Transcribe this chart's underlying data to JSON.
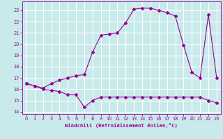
{
  "xlabel": "Windchill (Refroidissement éolien,°C)",
  "xlim": [
    -0.5,
    23.5
  ],
  "ylim": [
    13.8,
    23.8
  ],
  "yticks": [
    14,
    15,
    16,
    17,
    18,
    19,
    20,
    21,
    22,
    23
  ],
  "xticks": [
    0,
    1,
    2,
    3,
    4,
    5,
    6,
    7,
    8,
    9,
    10,
    11,
    12,
    13,
    14,
    15,
    16,
    17,
    18,
    19,
    20,
    21,
    22,
    23
  ],
  "bg_color": "#c8eaea",
  "grid_color": "#ffffff",
  "line_color": "#990099",
  "line1_x": [
    0,
    1,
    2,
    3,
    4,
    5,
    6,
    7,
    8,
    9,
    10,
    11,
    12,
    13,
    14,
    15,
    16,
    17,
    18,
    19,
    20,
    21,
    22,
    23
  ],
  "line1_y": [
    16.5,
    16.3,
    16.0,
    15.9,
    15.8,
    15.5,
    15.5,
    14.4,
    15.0,
    15.3,
    15.3,
    15.3,
    15.3,
    15.3,
    15.3,
    15.3,
    15.3,
    15.3,
    15.3,
    15.3,
    15.3,
    15.3,
    15.0,
    14.8
  ],
  "line2_x": [
    0,
    1,
    2,
    3,
    4,
    5,
    6,
    7,
    8,
    9,
    10,
    11,
    12,
    13,
    14,
    15,
    16,
    17,
    18,
    19,
    20,
    21,
    22,
    23
  ],
  "line2_y": [
    16.5,
    16.3,
    16.1,
    16.5,
    16.8,
    17.0,
    17.2,
    17.3,
    19.3,
    20.8,
    20.9,
    21.0,
    21.9,
    23.1,
    23.2,
    23.2,
    23.0,
    22.8,
    22.5,
    19.9,
    17.5,
    17.0,
    22.6,
    17.0
  ]
}
